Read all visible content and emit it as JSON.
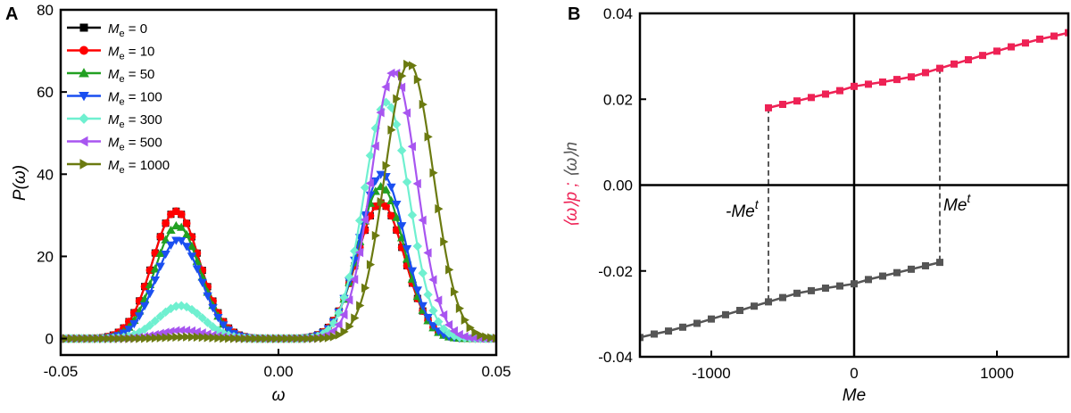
{
  "chart_data": [
    {
      "panel": "A",
      "type": "line",
      "title": "",
      "xlabel": "ω",
      "ylabel": "P(ω)",
      "xlim": [
        -0.05,
        0.05
      ],
      "ylim": [
        -4,
        80
      ],
      "xticks": [
        -0.05,
        0.0,
        0.05
      ],
      "xtick_labels": [
        "-0.05",
        "0.00",
        "0.05"
      ],
      "yticks": [
        0,
        20,
        40,
        60,
        80
      ],
      "ytick_labels": [
        "0",
        "20",
        "40",
        "60",
        "80"
      ],
      "legend_position": "top-left",
      "series": [
        {
          "name": "Me = 0",
          "legend_value": "0",
          "color": "#000000",
          "marker": "square",
          "peaks": [
            [
              -0.0235,
              0.0054,
              31
            ],
            [
              0.0235,
              0.0054,
              33
            ]
          ]
        },
        {
          "name": "Me = 10",
          "legend_value": "10",
          "color": "#ff0000",
          "marker": "circle",
          "peaks": [
            [
              -0.0235,
              0.0054,
              31
            ],
            [
              0.0235,
              0.0054,
              33
            ]
          ]
        },
        {
          "name": "Me = 50",
          "legend_value": "50",
          "color": "#22a022",
          "marker": "triangle-up",
          "peaks": [
            [
              -0.0232,
              0.0052,
              27.5
            ],
            [
              0.0236,
              0.0052,
              37
            ]
          ]
        },
        {
          "name": "Me = 100",
          "legend_value": "100",
          "color": "#1a4ff0",
          "marker": "triangle-down",
          "peaks": [
            [
              -0.023,
              0.0052,
              24
            ],
            [
              0.0238,
              0.0052,
              40
            ]
          ]
        },
        {
          "name": "Me = 300",
          "legend_value": "300",
          "color": "#6ff0d0",
          "marker": "diamond",
          "peaks": [
            [
              -0.0225,
              0.0052,
              8
            ],
            [
              0.0248,
              0.0052,
              57.5
            ]
          ]
        },
        {
          "name": "Me = 500",
          "legend_value": "500",
          "color": "#a855f0",
          "marker": "triangle-left",
          "peaks": [
            [
              -0.022,
              0.0052,
              2
            ],
            [
              0.0265,
              0.0052,
              65
            ]
          ]
        },
        {
          "name": "Me = 1000",
          "legend_value": "1000",
          "color": "#6b7a10",
          "marker": "triangle-right",
          "peaks": [
            [
              -0.021,
              0.005,
              0.4
            ],
            [
              0.03,
              0.0055,
              67
            ]
          ]
        }
      ]
    },
    {
      "panel": "B",
      "type": "line",
      "title": "",
      "xlabel": "Me",
      "ylabel": "⟨ω⟩p ; ⟨ω⟩n",
      "xlim": [
        -1500,
        1500
      ],
      "ylim": [
        -0.04,
        0.04
      ],
      "xticks": [
        -1000,
        0,
        1000
      ],
      "xtick_labels": [
        "-1000",
        "0",
        "1000"
      ],
      "yticks": [
        -0.04,
        -0.02,
        0.0,
        0.02,
        0.04
      ],
      "ytick_labels": [
        "-0.04",
        "-0.02",
        "0.00",
        "0.02",
        "0.04"
      ],
      "series": [
        {
          "name": "⟨ω⟩p",
          "color": "#ee2255",
          "marker": "square",
          "x": [
            -600,
            -500,
            -400,
            -300,
            -200,
            -100,
            0,
            100,
            200,
            300,
            400,
            500,
            600,
            700,
            800,
            900,
            1000,
            1100,
            1200,
            1300,
            1400,
            1500
          ],
          "y": [
            0.018,
            0.0188,
            0.0196,
            0.0204,
            0.0212,
            0.022,
            0.023,
            0.0235,
            0.024,
            0.0246,
            0.0252,
            0.0262,
            0.0272,
            0.0282,
            0.0292,
            0.0302,
            0.0312,
            0.0322,
            0.0331,
            0.034,
            0.0347,
            0.0355
          ]
        },
        {
          "name": "⟨ω⟩n",
          "color": "#555555",
          "marker": "square",
          "x": [
            -1500,
            -1400,
            -1300,
            -1200,
            -1100,
            -1000,
            -900,
            -800,
            -700,
            -600,
            -500,
            -400,
            -300,
            -200,
            -100,
            0,
            100,
            200,
            300,
            400,
            500,
            600
          ],
          "y": [
            -0.0355,
            -0.0347,
            -0.034,
            -0.0331,
            -0.0322,
            -0.0312,
            -0.0302,
            -0.0292,
            -0.0282,
            -0.0272,
            -0.0262,
            -0.0252,
            -0.0246,
            -0.024,
            -0.0235,
            -0.023,
            -0.022,
            -0.0212,
            -0.0204,
            -0.0196,
            -0.0188,
            -0.018
          ]
        }
      ],
      "annotations": {
        "neg_label": "-Me",
        "pos_label": "Me",
        "superscript": "t",
        "threshold": 600
      }
    }
  ],
  "panels": {
    "a_letter": "A",
    "b_letter": "B"
  },
  "legend_prefix": "M",
  "legend_subscript": "e",
  "legend_equals": " = "
}
